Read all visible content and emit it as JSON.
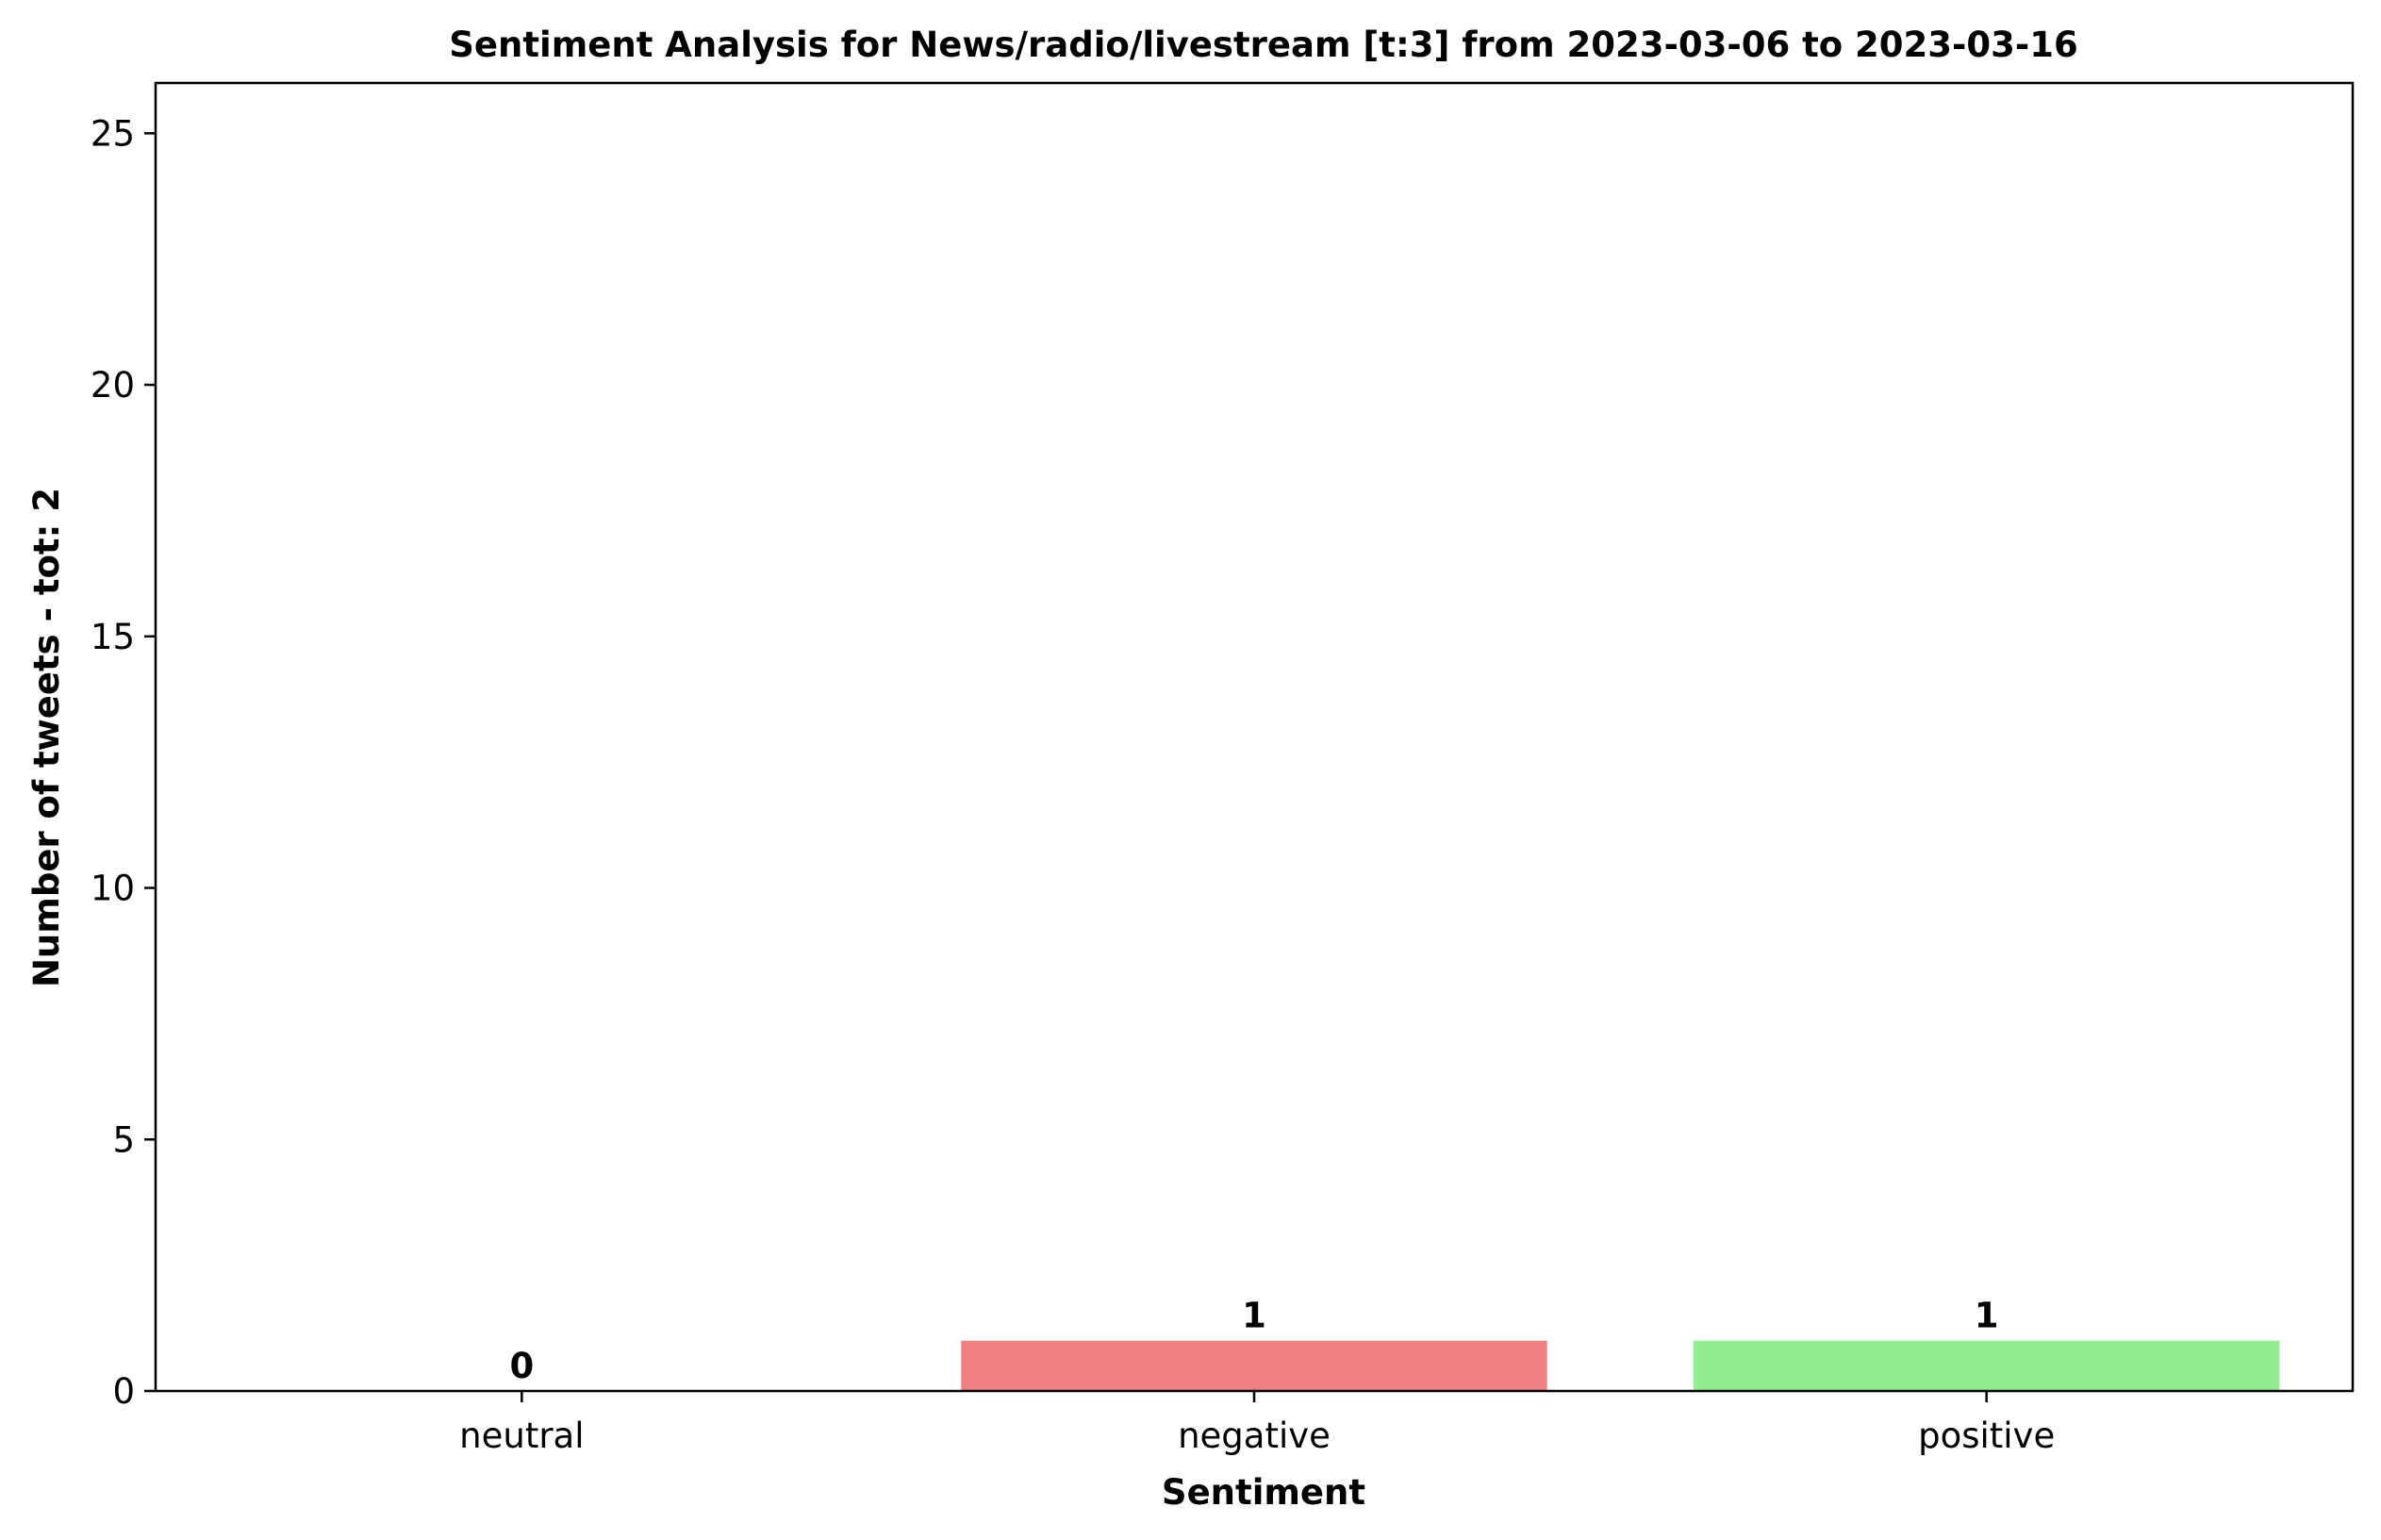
{
  "chart_data": {
    "type": "bar",
    "title": "Sentiment Analysis for News/radio/livestream [t:3] from 2023-03-06 to 2023-03-16",
    "xlabel": "Sentiment",
    "ylabel": "Number of tweets - tot: 2",
    "categories": [
      "neutral",
      "negative",
      "positive"
    ],
    "values": [
      0,
      1,
      1
    ],
    "data_labels": [
      "0",
      "1",
      "1"
    ],
    "colors": [
      "#add8e6",
      "#f08080",
      "#90ee90"
    ],
    "ylim": [
      0,
      26
    ],
    "yticks": [
      0,
      5,
      10,
      15,
      20,
      25
    ],
    "ytick_labels": [
      "0",
      "5",
      "10",
      "15",
      "20",
      "25"
    ],
    "grid": false,
    "legend": "none"
  }
}
